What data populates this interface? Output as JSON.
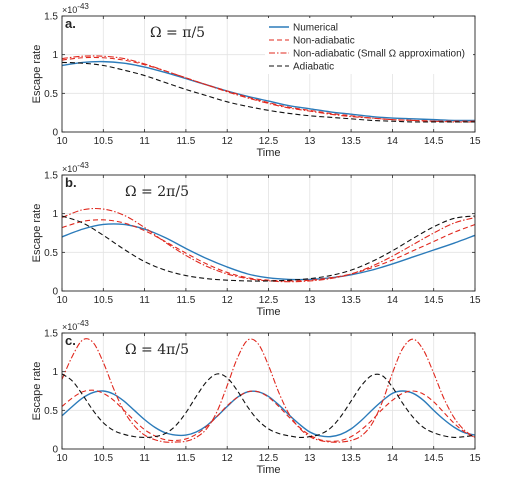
{
  "colors": {
    "numerical": "#2b7bba",
    "nonadiabatic": "#e0281e",
    "small_omega": "#e0281e",
    "adiabatic": "#111111",
    "axis": "#262626",
    "grid": "#e3e3e3"
  },
  "chart_data": [
    {
      "type": "line",
      "panel_label": "a.",
      "annotation": "Ω = π/5",
      "xlabel": "Time",
      "ylabel": "Escape rate",
      "y_multiplier": "×10",
      "y_multiplier_exp": "-43",
      "xlim": [
        10,
        15
      ],
      "ylim": [
        0,
        1.5
      ],
      "xticks": [
        "10",
        "10.5",
        "11",
        "11.5",
        "12",
        "12.5",
        "13",
        "13.5",
        "14",
        "14.5",
        "15"
      ],
      "yticks": [
        "0",
        "0.5",
        "1",
        "1.5"
      ],
      "grid": true,
      "legend": {
        "placement": "top-right",
        "entries": [
          "Numerical",
          "Non-adiabatic",
          "Non-adiabatic (Small Ω approximation)",
          "Adiabatic"
        ]
      },
      "series": [
        {
          "name": "Numerical",
          "x": [
            10,
            10.25,
            10.5,
            10.75,
            11,
            11.25,
            11.5,
            11.75,
            12,
            12.25,
            12.5,
            12.75,
            13,
            13.25,
            13.5,
            13.75,
            14,
            14.25,
            14.5,
            14.75,
            15
          ],
          "y": [
            0.86,
            0.9,
            0.91,
            0.89,
            0.84,
            0.77,
            0.69,
            0.61,
            0.53,
            0.46,
            0.4,
            0.34,
            0.3,
            0.26,
            0.23,
            0.2,
            0.18,
            0.17,
            0.16,
            0.15,
            0.15
          ]
        },
        {
          "name": "Non-adiabatic",
          "x": [
            10,
            10.25,
            10.5,
            10.75,
            11,
            11.25,
            11.5,
            11.75,
            12,
            12.25,
            12.5,
            12.75,
            13,
            13.25,
            13.5,
            13.75,
            14,
            14.25,
            14.5,
            14.75,
            15
          ],
          "y": [
            0.93,
            0.96,
            0.96,
            0.93,
            0.87,
            0.79,
            0.7,
            0.61,
            0.53,
            0.45,
            0.38,
            0.32,
            0.28,
            0.24,
            0.21,
            0.18,
            0.16,
            0.15,
            0.14,
            0.14,
            0.14
          ]
        },
        {
          "name": "Non-adiabatic (Small Ω approximation)",
          "x": [
            10,
            10.25,
            10.5,
            10.75,
            11,
            11.25,
            11.5,
            11.75,
            12,
            12.25,
            12.5,
            12.75,
            13,
            13.25,
            13.5,
            13.75,
            14,
            14.25,
            14.5,
            14.75,
            15
          ],
          "y": [
            0.95,
            0.98,
            0.98,
            0.95,
            0.88,
            0.79,
            0.7,
            0.61,
            0.52,
            0.44,
            0.37,
            0.31,
            0.27,
            0.23,
            0.2,
            0.18,
            0.16,
            0.15,
            0.14,
            0.13,
            0.13
          ]
        },
        {
          "name": "Adiabatic",
          "x": [
            10,
            10.25,
            10.5,
            10.75,
            11,
            11.25,
            11.5,
            11.75,
            12,
            12.25,
            12.5,
            12.75,
            13,
            13.25,
            13.5,
            13.75,
            14,
            14.25,
            14.5,
            14.75,
            15
          ],
          "y": [
            0.9,
            0.89,
            0.86,
            0.8,
            0.73,
            0.64,
            0.55,
            0.47,
            0.39,
            0.33,
            0.28,
            0.24,
            0.21,
            0.19,
            0.17,
            0.15,
            0.14,
            0.13,
            0.13,
            0.13,
            0.13
          ]
        }
      ]
    },
    {
      "type": "line",
      "panel_label": "b.",
      "annotation": "Ω = 2π/5",
      "xlabel": "Time",
      "ylabel": "Escape rate",
      "y_multiplier": "×10",
      "y_multiplier_exp": "-43",
      "xlim": [
        10,
        15
      ],
      "ylim": [
        0,
        1.5
      ],
      "xticks": [
        "10",
        "10.5",
        "11",
        "11.5",
        "12",
        "12.5",
        "13",
        "13.5",
        "14",
        "14.5",
        "15"
      ],
      "yticks": [
        "0",
        "0.5",
        "1",
        "1.5"
      ],
      "grid": true,
      "series": [
        {
          "name": "Numerical",
          "x": [
            10,
            10.25,
            10.5,
            10.75,
            11,
            11.25,
            11.5,
            11.75,
            12,
            12.25,
            12.5,
            12.75,
            13,
            13.25,
            13.5,
            13.75,
            14,
            14.25,
            14.5,
            14.75,
            15
          ],
          "y": [
            0.7,
            0.8,
            0.86,
            0.86,
            0.8,
            0.69,
            0.55,
            0.42,
            0.31,
            0.22,
            0.17,
            0.15,
            0.15,
            0.17,
            0.21,
            0.27,
            0.35,
            0.44,
            0.53,
            0.62,
            0.72
          ]
        },
        {
          "name": "Non-adiabatic",
          "x": [
            10,
            10.25,
            10.5,
            10.75,
            11,
            11.25,
            11.5,
            11.75,
            12,
            12.25,
            12.5,
            12.75,
            13,
            13.25,
            13.5,
            13.75,
            14,
            14.25,
            14.5,
            14.75,
            15
          ],
          "y": [
            0.82,
            0.9,
            0.92,
            0.88,
            0.78,
            0.64,
            0.49,
            0.35,
            0.24,
            0.17,
            0.14,
            0.13,
            0.14,
            0.17,
            0.22,
            0.3,
            0.4,
            0.52,
            0.64,
            0.76,
            0.86
          ]
        },
        {
          "name": "Non-adiabatic (Small Ω approximation)",
          "x": [
            10,
            10.25,
            10.5,
            10.75,
            11,
            11.25,
            11.5,
            11.75,
            12,
            12.25,
            12.5,
            12.75,
            13,
            13.25,
            13.5,
            13.75,
            14,
            14.25,
            14.5,
            14.75,
            15
          ],
          "y": [
            0.95,
            1.05,
            1.06,
            0.98,
            0.82,
            0.63,
            0.46,
            0.32,
            0.22,
            0.16,
            0.13,
            0.12,
            0.13,
            0.16,
            0.22,
            0.32,
            0.45,
            0.6,
            0.75,
            0.88,
            0.95
          ]
        },
        {
          "name": "Adiabatic",
          "x": [
            10,
            10.25,
            10.5,
            10.75,
            11,
            11.25,
            11.5,
            11.75,
            12,
            12.25,
            12.5,
            12.75,
            13,
            13.25,
            13.5,
            13.75,
            14,
            14.25,
            14.5,
            14.75,
            15
          ],
          "y": [
            0.97,
            0.88,
            0.72,
            0.54,
            0.38,
            0.27,
            0.2,
            0.16,
            0.14,
            0.13,
            0.13,
            0.14,
            0.16,
            0.2,
            0.27,
            0.38,
            0.52,
            0.68,
            0.83,
            0.94,
            0.97
          ]
        }
      ]
    },
    {
      "type": "line",
      "panel_label": "c.",
      "annotation": "Ω = 4π/5",
      "xlabel": "Time",
      "ylabel": "Escape rate",
      "y_multiplier": "×10",
      "y_multiplier_exp": "-43",
      "xlim": [
        10,
        15
      ],
      "ylim": [
        0,
        1.5
      ],
      "xticks": [
        "10",
        "10.5",
        "11",
        "11.5",
        "12",
        "12.5",
        "13",
        "13.5",
        "14",
        "14.5",
        "15"
      ],
      "yticks": [
        "0",
        "0.5",
        "1",
        "1.5"
      ],
      "grid": true,
      "series": [
        {
          "name": "Numerical",
          "x": [
            10,
            10.125,
            10.25,
            10.375,
            10.5,
            10.625,
            10.75,
            10.875,
            11,
            11.125,
            11.25,
            11.375,
            11.5,
            11.625,
            11.75,
            11.875,
            12,
            12.125,
            12.25,
            12.375,
            12.5,
            12.625,
            12.75,
            12.875,
            13,
            13.125,
            13.25,
            13.375,
            13.5,
            13.625,
            13.75,
            13.875,
            14,
            14.125,
            14.25,
            14.375,
            14.5,
            14.625,
            14.75,
            14.875,
            15
          ],
          "y": [
            0.43,
            0.55,
            0.66,
            0.73,
            0.75,
            0.71,
            0.62,
            0.5,
            0.38,
            0.28,
            0.21,
            0.18,
            0.18,
            0.22,
            0.3,
            0.42,
            0.55,
            0.67,
            0.74,
            0.74,
            0.68,
            0.57,
            0.44,
            0.32,
            0.22,
            0.17,
            0.16,
            0.19,
            0.26,
            0.37,
            0.5,
            0.62,
            0.72,
            0.75,
            0.72,
            0.63,
            0.5,
            0.38,
            0.28,
            0.21,
            0.18
          ]
        },
        {
          "name": "Non-adiabatic",
          "x": [
            10,
            10.125,
            10.25,
            10.375,
            10.5,
            10.625,
            10.75,
            10.875,
            11,
            11.125,
            11.25,
            11.375,
            11.5,
            11.625,
            11.75,
            11.875,
            12,
            12.125,
            12.25,
            12.375,
            12.5,
            12.625,
            12.75,
            12.875,
            13,
            13.125,
            13.25,
            13.375,
            13.5,
            13.625,
            13.75,
            13.875,
            14,
            14.125,
            14.25,
            14.375,
            14.5,
            14.625,
            14.75,
            14.875,
            15
          ],
          "y": [
            0.55,
            0.66,
            0.74,
            0.76,
            0.72,
            0.63,
            0.5,
            0.37,
            0.25,
            0.17,
            0.12,
            0.11,
            0.13,
            0.19,
            0.29,
            0.42,
            0.56,
            0.67,
            0.74,
            0.74,
            0.67,
            0.55,
            0.41,
            0.28,
            0.18,
            0.12,
            0.1,
            0.11,
            0.16,
            0.25,
            0.37,
            0.51,
            0.63,
            0.72,
            0.75,
            0.71,
            0.61,
            0.47,
            0.33,
            0.22,
            0.15
          ]
        },
        {
          "name": "Non-adiabatic (Small Ω approximation)",
          "x": [
            10,
            10.125,
            10.25,
            10.375,
            10.5,
            10.625,
            10.75,
            10.875,
            11,
            11.125,
            11.25,
            11.375,
            11.5,
            11.625,
            11.75,
            11.875,
            12,
            12.125,
            12.25,
            12.375,
            12.5,
            12.625,
            12.75,
            12.875,
            13,
            13.125,
            13.25,
            13.375,
            13.5,
            13.625,
            13.75,
            13.875,
            14,
            14.125,
            14.25,
            14.375,
            14.5,
            14.625,
            14.75,
            14.875,
            15
          ],
          "y": [
            0.9,
            1.2,
            1.41,
            1.38,
            1.12,
            0.78,
            0.49,
            0.3,
            0.18,
            0.12,
            0.09,
            0.09,
            0.1,
            0.15,
            0.26,
            0.48,
            0.82,
            1.18,
            1.41,
            1.36,
            1.08,
            0.73,
            0.45,
            0.27,
            0.16,
            0.11,
            0.09,
            0.09,
            0.11,
            0.17,
            0.32,
            0.6,
            0.98,
            1.3,
            1.42,
            1.28,
            0.98,
            0.65,
            0.4,
            0.24,
            0.15
          ]
        },
        {
          "name": "Adiabatic",
          "x": [
            10,
            10.125,
            10.25,
            10.375,
            10.5,
            10.625,
            10.75,
            10.875,
            11,
            11.125,
            11.25,
            11.375,
            11.5,
            11.625,
            11.75,
            11.875,
            12,
            12.125,
            12.25,
            12.375,
            12.5,
            12.625,
            12.75,
            12.875,
            13,
            13.125,
            13.25,
            13.375,
            13.5,
            13.625,
            13.75,
            13.875,
            14,
            14.125,
            14.25,
            14.375,
            14.5,
            14.625,
            14.75,
            14.875,
            15
          ],
          "y": [
            0.97,
            0.88,
            0.7,
            0.5,
            0.34,
            0.24,
            0.19,
            0.16,
            0.15,
            0.16,
            0.2,
            0.3,
            0.47,
            0.68,
            0.87,
            0.97,
            0.92,
            0.75,
            0.54,
            0.37,
            0.26,
            0.2,
            0.17,
            0.15,
            0.16,
            0.19,
            0.27,
            0.42,
            0.62,
            0.82,
            0.95,
            0.95,
            0.8,
            0.59,
            0.41,
            0.28,
            0.21,
            0.17,
            0.15,
            0.16,
            0.18
          ]
        }
      ]
    }
  ]
}
